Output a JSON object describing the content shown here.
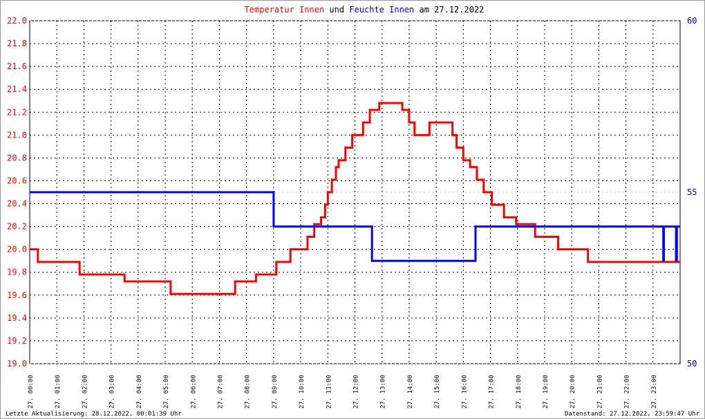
{
  "chart_data": {
    "type": "line",
    "title_connector": "und",
    "title_date": "am 27.12.2022",
    "footer_left": "Letzte Aktualisierung: 28.12.2022, 00:01:39 Uhr",
    "footer_right": "Datenstand: 27.12.2022, 23:59:47 Uhr",
    "xlim": [
      0,
      24
    ],
    "xticks": [
      {
        "value": 0,
        "label": "27. 00:00"
      },
      {
        "value": 1,
        "label": "27. 01:00"
      },
      {
        "value": 2,
        "label": "27. 02:00"
      },
      {
        "value": 3,
        "label": "27. 03:00"
      },
      {
        "value": 4,
        "label": "27. 04:00"
      },
      {
        "value": 5,
        "label": "27. 05:00"
      },
      {
        "value": 6,
        "label": "27. 06:00"
      },
      {
        "value": 7,
        "label": "27. 07:00"
      },
      {
        "value": 8,
        "label": "27. 08:00"
      },
      {
        "value": 9,
        "label": "27. 09:00"
      },
      {
        "value": 10,
        "label": "27. 10:00"
      },
      {
        "value": 11,
        "label": "27. 11:00"
      },
      {
        "value": 12,
        "label": "27. 12:00"
      },
      {
        "value": 13,
        "label": "27. 13:00"
      },
      {
        "value": 14,
        "label": "27. 14:00"
      },
      {
        "value": 15,
        "label": "27. 15:00"
      },
      {
        "value": 16,
        "label": "27. 16:00"
      },
      {
        "value": 17,
        "label": "27. 17:00"
      },
      {
        "value": 18,
        "label": "27. 18:00"
      },
      {
        "value": 19,
        "label": "27. 19:00"
      },
      {
        "value": 20,
        "label": "27. 20:00"
      },
      {
        "value": 21,
        "label": "27. 21:00"
      },
      {
        "value": 22,
        "label": "27. 22:00"
      },
      {
        "value": 23,
        "label": "27. 23:00"
      }
    ],
    "ylim": [
      19,
      22
    ],
    "yticks": [
      {
        "value": 19,
        "label": "19.0"
      },
      19.2,
      19.4,
      19.6,
      19.8,
      {
        "value": 20,
        "label": "20.0"
      },
      20.2,
      20.4,
      20.6,
      20.8,
      {
        "value": 21,
        "label": "21.0"
      },
      21.2,
      21.4,
      21.6,
      21.8,
      {
        "value": 22,
        "label": "22.0"
      }
    ],
    "y2lim": [
      50,
      60
    ],
    "y2ticks": [
      50,
      55,
      60
    ],
    "grid": true,
    "series": [
      {
        "name": "Temperatur Innen",
        "color": "#ff0000",
        "x": [
          0,
          0.3,
          0.3,
          1.84,
          1.84,
          3.5,
          3.5,
          5.2,
          5.2,
          7.58,
          7.58,
          8.35,
          8.35,
          9.1,
          9.1,
          9.62,
          9.62,
          10.25,
          10.25,
          10.5,
          10.5,
          10.75,
          10.75,
          10.9,
          10.9,
          11.0,
          11.0,
          11.15,
          11.15,
          11.3,
          11.3,
          11.4,
          11.4,
          11.65,
          11.65,
          11.9,
          11.9,
          12.3,
          12.3,
          12.55,
          12.55,
          12.9,
          12.9,
          13.75,
          13.75,
          14.0,
          14.0,
          14.2,
          14.2,
          14.75,
          14.75,
          15.6,
          15.6,
          15.75,
          15.75,
          16.0,
          16.0,
          16.25,
          16.25,
          16.5,
          16.5,
          16.75,
          16.75,
          17.05,
          17.05,
          17.5,
          17.5,
          17.95,
          17.95,
          18.65,
          18.65,
          19.5,
          19.5,
          20.6,
          20.6,
          24
        ],
        "values": [
          20.0,
          20.0,
          19.89,
          19.89,
          19.78,
          19.78,
          19.72,
          19.72,
          19.61,
          19.61,
          19.72,
          19.72,
          19.78,
          19.78,
          19.89,
          19.89,
          20.0,
          20.0,
          20.11,
          20.11,
          20.22,
          20.22,
          20.28,
          20.28,
          20.39,
          20.39,
          20.5,
          20.5,
          20.61,
          20.61,
          20.72,
          20.72,
          20.78,
          20.78,
          20.89,
          20.89,
          21.0,
          21.0,
          21.11,
          21.11,
          21.22,
          21.22,
          21.28,
          21.28,
          21.22,
          21.22,
          21.11,
          21.11,
          21.0,
          21.0,
          21.11,
          21.11,
          21.0,
          21.0,
          20.89,
          20.89,
          20.78,
          20.78,
          20.72,
          20.72,
          20.61,
          20.61,
          20.5,
          20.5,
          20.39,
          20.39,
          20.28,
          20.28,
          20.22,
          20.22,
          20.11,
          20.11,
          20.0,
          20.0,
          19.89,
          19.89
        ]
      },
      {
        "name": "Feuchte Innen",
        "color": "#0000ff",
        "axis": "y2",
        "x": [
          0,
          9.0,
          9.0,
          12.63,
          12.63,
          16.45,
          16.45,
          23.38,
          23.38,
          23.4,
          23.4,
          23.85,
          23.85,
          23.88,
          23.88,
          24
        ],
        "values": [
          55,
          55,
          54,
          54,
          53,
          53,
          54,
          54,
          53,
          53,
          54,
          54,
          53,
          53,
          54,
          54
        ]
      }
    ]
  }
}
